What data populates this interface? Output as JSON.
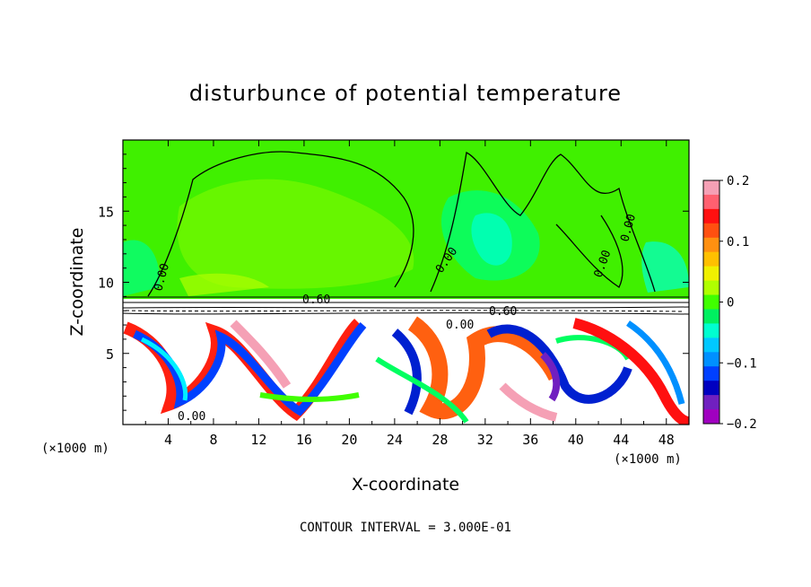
{
  "chart_data": {
    "type": "heatmap",
    "title": "disturbunce of potential temperature",
    "xlabel": "X-coordinate",
    "ylabel": "Z-coordinate",
    "x_unit_left": "(×1000 m)",
    "x_unit_right": "(×1000 m)",
    "xlim": [
      0,
      50
    ],
    "ylim": [
      0,
      20
    ],
    "x_ticks": [
      4,
      8,
      12,
      16,
      20,
      24,
      28,
      32,
      36,
      40,
      44,
      48
    ],
    "y_ticks": [
      5,
      10,
      15
    ],
    "colorbar": {
      "min": -0.2,
      "max": 0.2,
      "tick_labels": [
        "0.2",
        "0.1",
        "0",
        "−0.1",
        "−0.2"
      ],
      "tick_values": [
        0.2,
        0.1,
        0,
        -0.1,
        -0.2
      ],
      "colors": [
        "#f5a0b5",
        "#ff6070",
        "#ff1010",
        "#ff5010",
        "#ff9010",
        "#ffc000",
        "#f0f000",
        "#b0ff00",
        "#40ff00",
        "#00f060",
        "#00ffd0",
        "#00c8ff",
        "#0090ff",
        "#0040ff",
        "#0000c0",
        "#7020c0",
        "#a000c0"
      ]
    },
    "contour_labels": [
      "0.60",
      "0.60",
      "0.00",
      "0.00",
      "0.00",
      "0.00",
      "0.00",
      "0.00"
    ],
    "footer": "CONTOUR INTERVAL = 3.000E-01"
  }
}
